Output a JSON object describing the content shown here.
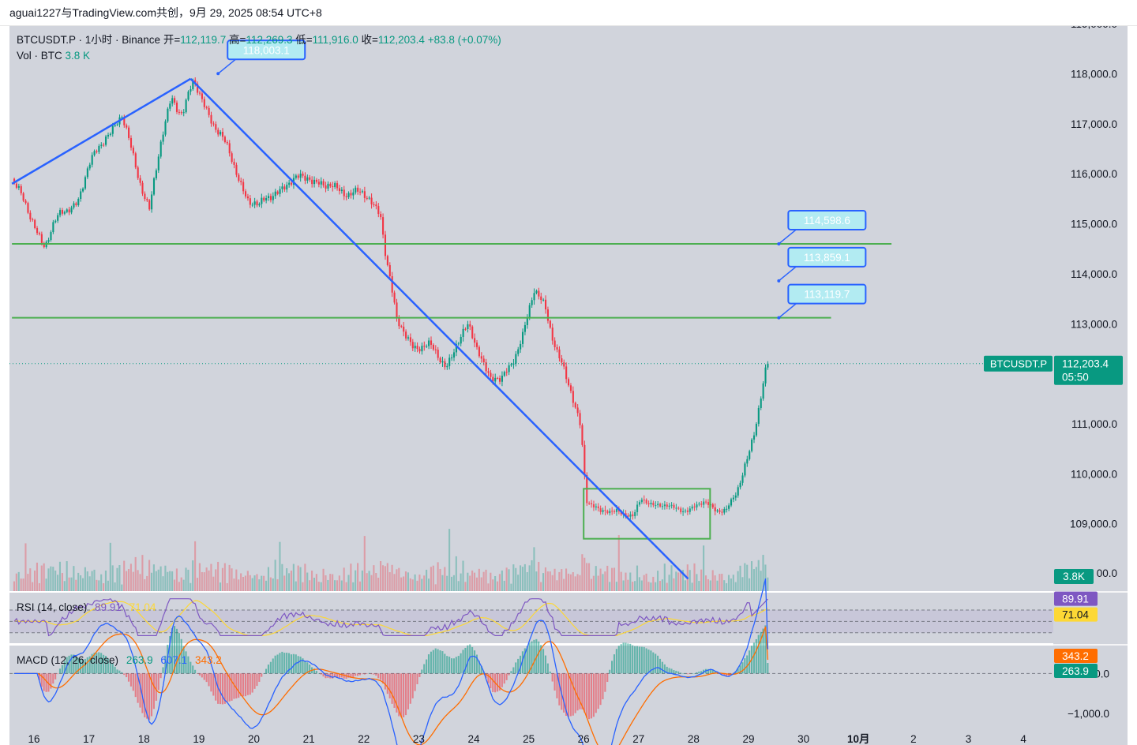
{
  "header": {
    "author": "aguai1227",
    "published_text": "aguai1227与TradingView.com共创，9月 29, 2025 08:54 UTC+8"
  },
  "legend": {
    "symbol_line": "BTCUSDT.P · 1小时 · Binance",
    "open_label": "开=",
    "open": "112,119.7",
    "high_label": "高=",
    "high": "112,269.3",
    "low_label": "低=",
    "low": "111,916.0",
    "close_label": "收=",
    "close": "112,203.4",
    "change": "+83.8 (+0.07%)",
    "vol_label": "Vol · BTC",
    "vol_value": "3.8 K"
  },
  "rsi_legend": {
    "name": "RSI (14, close)",
    "v1": "89.91",
    "v2": "71.04"
  },
  "macd_legend": {
    "name": "MACD (12, 26, close)",
    "v1": "263.9",
    "v2": "607.1",
    "v3": "343.2"
  },
  "colors": {
    "background": "#d1d4dc",
    "up": "#089981",
    "down": "#f23645",
    "trendline": "#2962ff",
    "level": "#4caf50",
    "callout_fill": "#b2ebf2",
    "rsi": "#7e57c2",
    "rsi_ma": "#fdd835",
    "macd": "#2962ff",
    "signal": "#ff6d00"
  },
  "chart_data": {
    "type": "candlestick",
    "symbol": "BTCUSDT.P",
    "interval": "1小时",
    "exchange": "Binance",
    "ylim": [
      107800,
      119000
    ],
    "y_ticks": [
      "118,000.0",
      "117,000.0",
      "116,000.0",
      "115,000.0",
      "114,000.0",
      "113,000.0",
      "111,000.0",
      "110,000.0",
      "109,000.0"
    ],
    "y_tick_values": [
      118000,
      117000,
      116000,
      115000,
      114000,
      113000,
      111000,
      110000,
      109000
    ],
    "y_top_partial": "119,000.0",
    "y_bottom_partial": "00.0",
    "x_ticks": [
      "16",
      "17",
      "18",
      "19",
      "20",
      "21",
      "22",
      "23",
      "24",
      "25",
      "26",
      "27",
      "28",
      "29",
      "30",
      "10月",
      "2",
      "3",
      "4"
    ],
    "x_tick_days": [
      16,
      17,
      18,
      19,
      20,
      21,
      22,
      23,
      24,
      25,
      26,
      27,
      28,
      29,
      30,
      31,
      32,
      33,
      34
    ],
    "x_range_days": [
      15.6,
      35.0
    ],
    "last_day": 29.35,
    "price_anchors": [
      [
        15.6,
        115900
      ],
      [
        15.9,
        115200
      ],
      [
        16.2,
        114600
      ],
      [
        16.5,
        115200
      ],
      [
        16.8,
        115500
      ],
      [
        17.0,
        116100
      ],
      [
        17.3,
        116800
      ],
      [
        17.6,
        117100
      ],
      [
        17.9,
        116000
      ],
      [
        18.1,
        115300
      ],
      [
        18.3,
        116500
      ],
      [
        18.5,
        117600
      ],
      [
        18.7,
        117200
      ],
      [
        18.9,
        117800
      ],
      [
        19.2,
        117200
      ],
      [
        19.5,
        116500
      ],
      [
        19.9,
        115500
      ],
      [
        20.1,
        115300
      ],
      [
        20.4,
        115700
      ],
      [
        20.7,
        115800
      ],
      [
        21.0,
        116000
      ],
      [
        21.3,
        115700
      ],
      [
        21.6,
        115700
      ],
      [
        21.9,
        115600
      ],
      [
        22.3,
        115300
      ],
      [
        22.4,
        114400
      ],
      [
        22.6,
        113000
      ],
      [
        22.9,
        112600
      ],
      [
        23.2,
        112500
      ],
      [
        23.5,
        112200
      ],
      [
        23.7,
        112600
      ],
      [
        23.9,
        112900
      ],
      [
        24.1,
        112500
      ],
      [
        24.3,
        111900
      ],
      [
        24.5,
        111800
      ],
      [
        24.7,
        112300
      ],
      [
        24.9,
        112800
      ],
      [
        25.1,
        113600
      ],
      [
        25.3,
        113400
      ],
      [
        25.5,
        112500
      ],
      [
        25.7,
        111800
      ],
      [
        25.95,
        111000
      ],
      [
        26.05,
        109500
      ],
      [
        26.3,
        109200
      ],
      [
        26.6,
        109300
      ],
      [
        26.9,
        109100
      ],
      [
        27.05,
        109500
      ],
      [
        27.3,
        109400
      ],
      [
        27.6,
        109300
      ],
      [
        27.9,
        109300
      ],
      [
        28.2,
        109400
      ],
      [
        28.4,
        109300
      ],
      [
        28.6,
        109300
      ],
      [
        28.8,
        109600
      ],
      [
        28.95,
        110200
      ],
      [
        29.1,
        110900
      ],
      [
        29.25,
        111700
      ],
      [
        29.35,
        112203
      ]
    ],
    "volume_label": "3.8K",
    "levels": [
      {
        "price": 114598.6,
        "label": "114,598.6",
        "x_from": 15.6,
        "x_to": 31.6
      },
      {
        "price": 113119.7,
        "label": "113,119.7",
        "x_from": 15.6,
        "x_to": 30.5
      }
    ],
    "callouts": [
      {
        "text": "118,003.1",
        "anchor_day": 19.35,
        "anchor_price": 118003.1
      },
      {
        "text": "114,598.6",
        "anchor_day": 29.55,
        "anchor_price": 114598.6
      },
      {
        "text": "113,859.1",
        "anchor_day": 29.55,
        "anchor_price": 113859.1
      },
      {
        "text": "113,119.7",
        "anchor_day": 29.55,
        "anchor_price": 113119.7
      }
    ],
    "trendlines": [
      {
        "from": [
          15.6,
          115800
        ],
        "to": [
          18.85,
          117900
        ]
      },
      {
        "from": [
          18.85,
          117900
        ],
        "to": [
          27.9,
          107900
        ]
      }
    ],
    "range_box": {
      "x1": 26.0,
      "x2": 28.3,
      "p_top": 109700,
      "p_bottom": 108700
    },
    "last_price": {
      "symbol": "BTCUSDT.P",
      "price": 112203.4,
      "price_text": "112,203.4",
      "countdown": "05:50"
    },
    "rsi": {
      "name": "RSI (14, close)",
      "value": 89.91,
      "value_text": "89.91",
      "ma": 71.04,
      "ma_text": "71.04",
      "ylim": [
        0,
        100
      ],
      "bands": [
        70,
        50,
        30
      ]
    },
    "macd": {
      "name": "MACD (12, 26, close)",
      "histogram": 263.9,
      "histogram_text": "263.9",
      "macd": 607.1,
      "macd_text": "607.1",
      "signal": 343.2,
      "signal_text": "343.2",
      "y_ticks": [
        "0.0",
        "−1,000.0"
      ],
      "y_tick_values": [
        0,
        -1000
      ],
      "ylim": [
        -1300,
        700
      ]
    }
  }
}
